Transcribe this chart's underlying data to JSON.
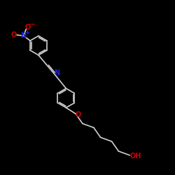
{
  "bg_color": "#000000",
  "bond_color": "#D0D0D0",
  "bond_lw": 1.2,
  "dbl_off": 0.07,
  "N_imine_color": "#2222DD",
  "N_nitro_color": "#2222DD",
  "O_color": "#CC0000",
  "ring_r": 0.55,
  "figsize": [
    2.5,
    2.5
  ],
  "dpi": 100,
  "xlim": [
    0,
    10
  ],
  "ylim": [
    0,
    10
  ]
}
